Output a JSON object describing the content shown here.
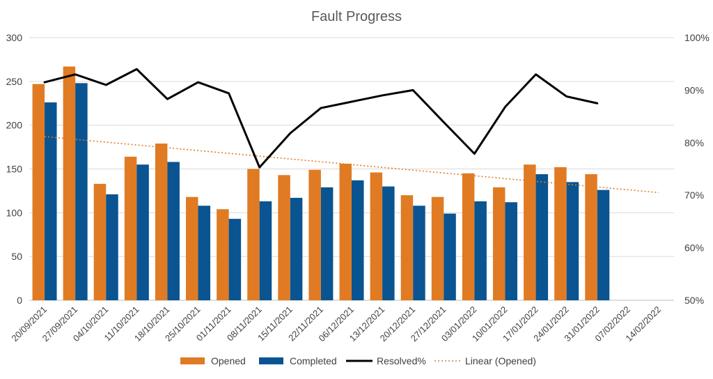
{
  "chart_data": {
    "type": "bar",
    "title": "Fault Progress",
    "xlabel": "",
    "ylabel": "",
    "categories": [
      "20/09/2021",
      "27/09/2021",
      "04/10/2021",
      "11/10/2021",
      "18/10/2021",
      "25/10/2021",
      "01/11/2021",
      "08/11/2021",
      "15/11/2021",
      "22/11/2021",
      "06/12/2021",
      "13/12/2021",
      "20/12/2021",
      "27/12/2021",
      "03/01/2022",
      "10/01/2022",
      "17/01/2022",
      "24/01/2022",
      "31/01/2022",
      "07/02/2022",
      "14/02/2022"
    ],
    "ylim": [
      0,
      300
    ],
    "y_ticks": [
      "0",
      "50",
      "100",
      "150",
      "200",
      "250",
      "300"
    ],
    "y2lim": [
      50,
      100
    ],
    "y2_ticks": [
      "50%",
      "60%",
      "70%",
      "80%",
      "90%",
      "100%"
    ],
    "grid": true,
    "legend_position": "bottom",
    "series": [
      {
        "name": "Opened",
        "kind": "bar",
        "color": "#E07B24",
        "values": [
          247,
          267,
          133,
          164,
          179,
          118,
          104,
          150,
          143,
          149,
          156,
          146,
          120,
          118,
          145,
          129,
          155,
          152,
          144,
          null,
          null
        ]
      },
      {
        "name": "Completed",
        "kind": "bar",
        "color": "#0A5491",
        "values": [
          226,
          248,
          121,
          155,
          158,
          108,
          93,
          113,
          117,
          129,
          137,
          130,
          108,
          99,
          113,
          112,
          144,
          135,
          126,
          null,
          null
        ]
      },
      {
        "name": "Resolved%",
        "kind": "line",
        "axis": "right",
        "color": "#000000",
        "values": [
          91.5,
          93,
          91,
          94,
          88.3,
          91.5,
          89.4,
          75.3,
          81.8,
          86.6,
          87.8,
          89,
          90,
          83.9,
          77.9,
          86.8,
          93,
          88.8,
          87.5,
          null,
          null
        ]
      },
      {
        "name": "Linear (Opened)",
        "kind": "trendline",
        "color": "#E07B24",
        "values": [
          187,
          183.8,
          180.6,
          177.4,
          174.2,
          171,
          167.8,
          164.6,
          161.4,
          158.2,
          155,
          151.8,
          148.6,
          145.4,
          142.2,
          139,
          135.8,
          132.6,
          129.4,
          126.2,
          123
        ]
      }
    ]
  }
}
